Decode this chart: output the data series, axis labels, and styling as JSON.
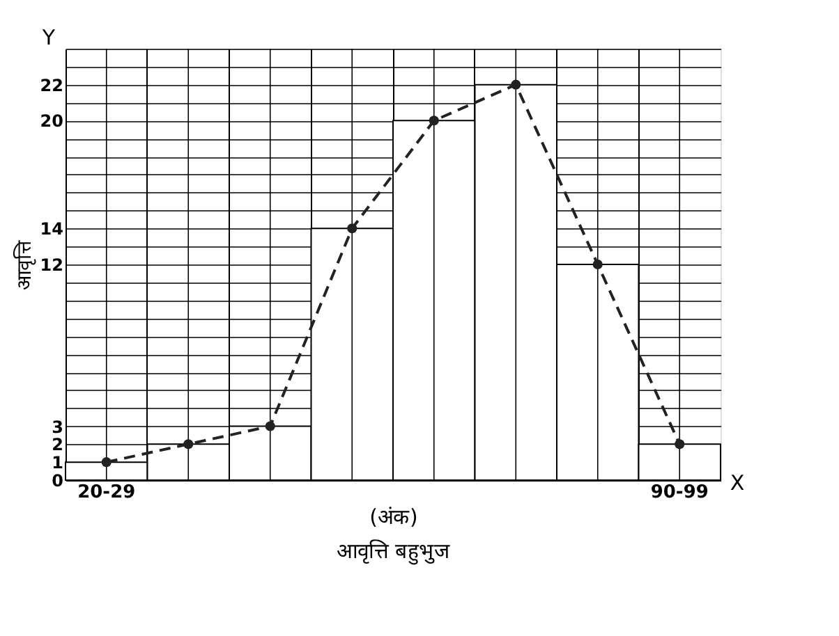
{
  "chart_data": {
    "type": "bar",
    "title": "आवृत्ति बहुभुज",
    "xlabel": "(अंक)",
    "ylabel": "आवृत्ति",
    "categories": [
      "20-29",
      null,
      null,
      null,
      null,
      null,
      null,
      "90-99"
    ],
    "series": [
      {
        "color": "#ffffff",
        "values": [
          1,
          2,
          3,
          14,
          20,
          22,
          12,
          2
        ]
      },
      {
        "type": "line",
        "color": "#222222",
        "values": [
          1,
          2,
          3,
          14,
          20,
          22,
          12,
          2
        ],
        "marker": "circle",
        "line_style": "dashed"
      }
    ],
    "ylim": [
      0,
      24
    ],
    "yticks": [
      0,
      1,
      2,
      3,
      {
        "value": 4,
        "label": null
      },
      {
        "value": 5,
        "label": null
      },
      {
        "value": 6,
        "label": null
      },
      {
        "value": 7,
        "label": null
      },
      {
        "value": 8,
        "label": null
      },
      {
        "value": 9,
        "label": null
      },
      {
        "value": 10,
        "label": null
      },
      {
        "value": 11,
        "label": null
      },
      12,
      {
        "value": 13,
        "label": null
      },
      14,
      {
        "value": 15,
        "label": null
      },
      {
        "value": 16,
        "label": null
      },
      {
        "value": 17,
        "label": null
      },
      {
        "value": 18,
        "label": null
      },
      {
        "value": 19,
        "label": null
      },
      20,
      {
        "value": 21,
        "label": null
      },
      22,
      {
        "value": 23,
        "label": null
      },
      {
        "value": 24,
        "label": null
      }
    ],
    "grid": true,
    "annotations": [
      "Y",
      "X"
    ]
  }
}
